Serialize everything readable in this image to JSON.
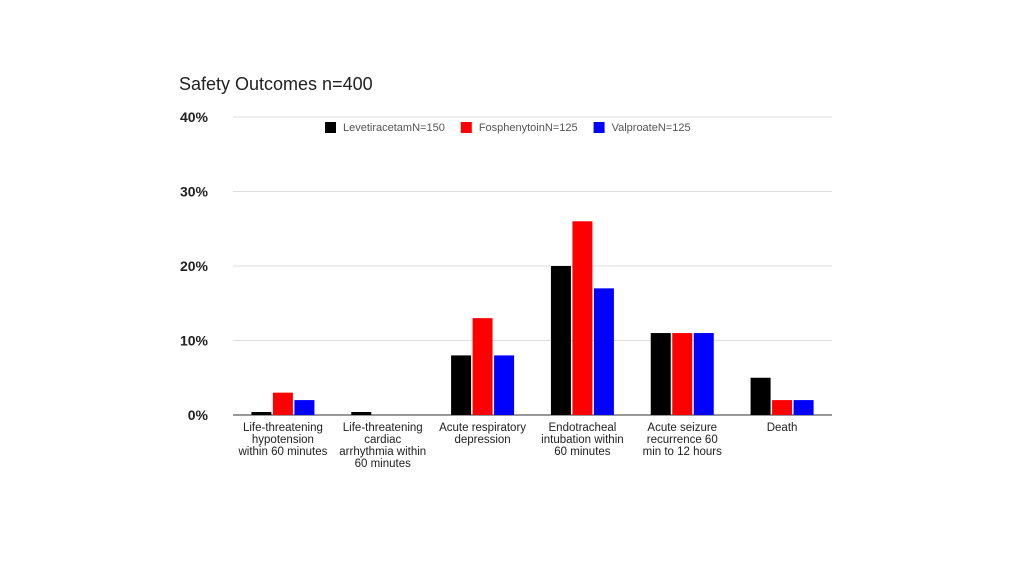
{
  "chart_data": {
    "type": "bar",
    "title": "Safety Outcomes n=400",
    "categories": [
      "Life-threatening hypotension within 60 minutes",
      "Life-threatening cardiac arrhythmia within 60 minutes",
      "Acute respiratory depression",
      "Endotracheal intubation within 60 minutes",
      "Acute seizure recurrence 60 min to 12 hours",
      "Death"
    ],
    "category_lines": [
      [
        "Life-threatening",
        "hypotension",
        "within 60 minutes"
      ],
      [
        "Life-threatening",
        "cardiac",
        "arrhythmia within",
        "60 minutes"
      ],
      [
        "Acute respiratory",
        "depression"
      ],
      [
        "Endotracheal",
        "intubation within",
        "60 minutes"
      ],
      [
        "Acute seizure",
        "recurrence 60",
        "min to 12 hours"
      ],
      [
        "Death"
      ]
    ],
    "series": [
      {
        "name": "LevetiracetamN=150",
        "color": "#000000",
        "values": [
          0.4,
          0.4,
          8,
          20,
          11,
          5
        ]
      },
      {
        "name": "FosphenytoinN=125",
        "color": "#ff0000",
        "values": [
          3,
          0,
          13,
          26,
          11,
          2
        ]
      },
      {
        "name": "ValproateN=125",
        "color": "#0000ff",
        "values": [
          2,
          0,
          8,
          17,
          11,
          2
        ]
      }
    ],
    "y_ticks": [
      "0%",
      "10%",
      "20%",
      "30%",
      "40%"
    ],
    "ylim": [
      0,
      40
    ],
    "grid": true,
    "legend_position": "top-center",
    "xlabel": "",
    "ylabel": ""
  }
}
